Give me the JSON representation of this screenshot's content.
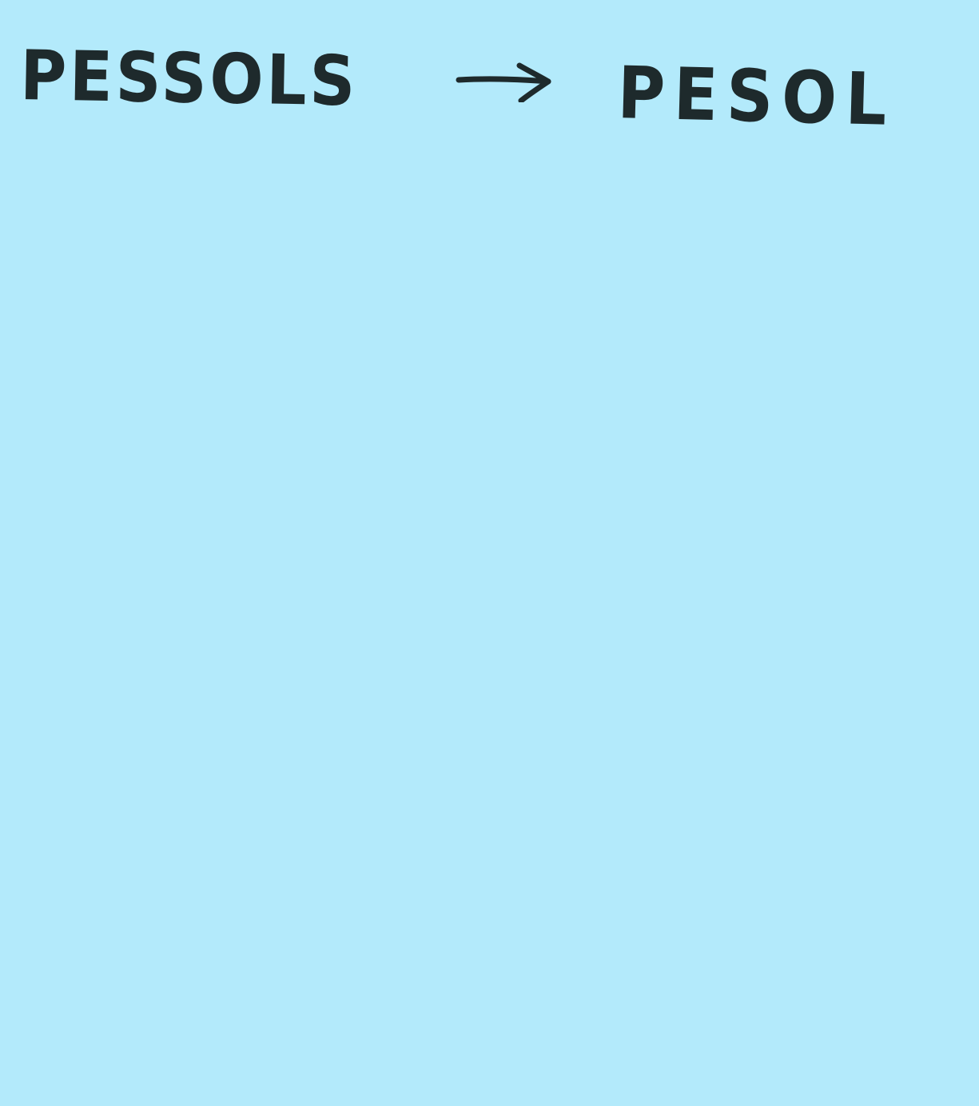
{
  "note": {
    "background_color": "#b3eafb",
    "ink_color": "#1e2a2c",
    "from_word": "PESSOLS",
    "to_word": "PESOL",
    "arrow_icon": "right-arrow-icon"
  }
}
